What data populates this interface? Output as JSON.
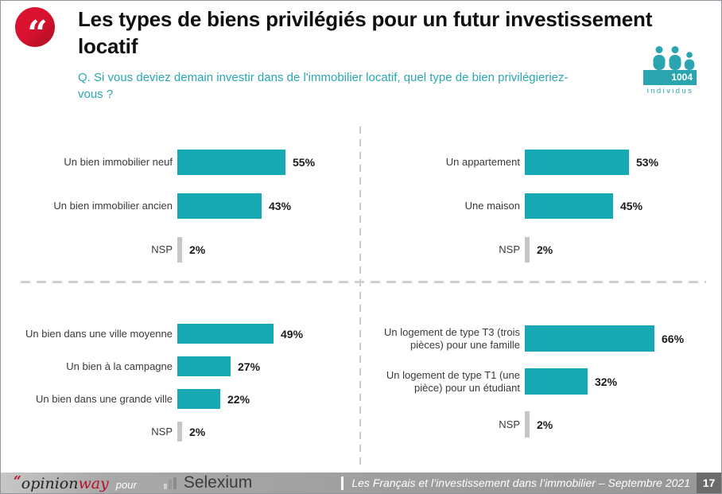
{
  "header": {
    "title": "Les types de biens privilégiés pour un futur investissement locatif",
    "question": "Q. Si vous deviez demain investir dans de l'immobilier locatif, quel type de bien privilégieriez-vous ?",
    "sample_count": "1004",
    "sample_unit": "individus"
  },
  "colors": {
    "teal_bar": "#16a9b3",
    "teal_badge": "#2aa4ae",
    "nsp_gray": "#c6c6c6",
    "accent_red": "#d8122f"
  },
  "chart_data": [
    {
      "type": "bar",
      "orientation": "horizontal",
      "categories": [
        "Un bien immobilier neuf",
        "Un bien immobilier ancien",
        "NSP"
      ],
      "values": [
        55,
        43,
        2
      ],
      "value_suffix": "%",
      "xlim": [
        0,
        100
      ],
      "grid": false,
      "legend": false
    },
    {
      "type": "bar",
      "orientation": "horizontal",
      "categories": [
        "Un appartement",
        "Une maison",
        "NSP"
      ],
      "values": [
        53,
        45,
        2
      ],
      "value_suffix": "%",
      "xlim": [
        0,
        100
      ],
      "grid": false,
      "legend": false
    },
    {
      "type": "bar",
      "orientation": "horizontal",
      "categories": [
        "Un bien dans une ville moyenne",
        "Un bien à la campagne",
        "Un bien dans une grande ville",
        "NSP"
      ],
      "values": [
        49,
        27,
        22,
        2
      ],
      "value_suffix": "%",
      "xlim": [
        0,
        100
      ],
      "grid": false,
      "legend": false
    },
    {
      "type": "bar",
      "orientation": "horizontal",
      "categories": [
        "Un logement de type T3 (trois pièces) pour une famille",
        "Un logement de type T1 (une pièce) pour un étudiant",
        "NSP"
      ],
      "values": [
        66,
        32,
        2
      ],
      "value_suffix": "%",
      "xlim": [
        0,
        100
      ],
      "grid": false,
      "legend": false
    }
  ],
  "footer": {
    "agency_quote": "“",
    "agency_name_dark": "opinion",
    "agency_name_red": "way",
    "pour_label": "pour",
    "client": "Selexium",
    "report": "Les Français et l’investissement dans l’immobilier – Septembre 2021",
    "page": "17"
  }
}
